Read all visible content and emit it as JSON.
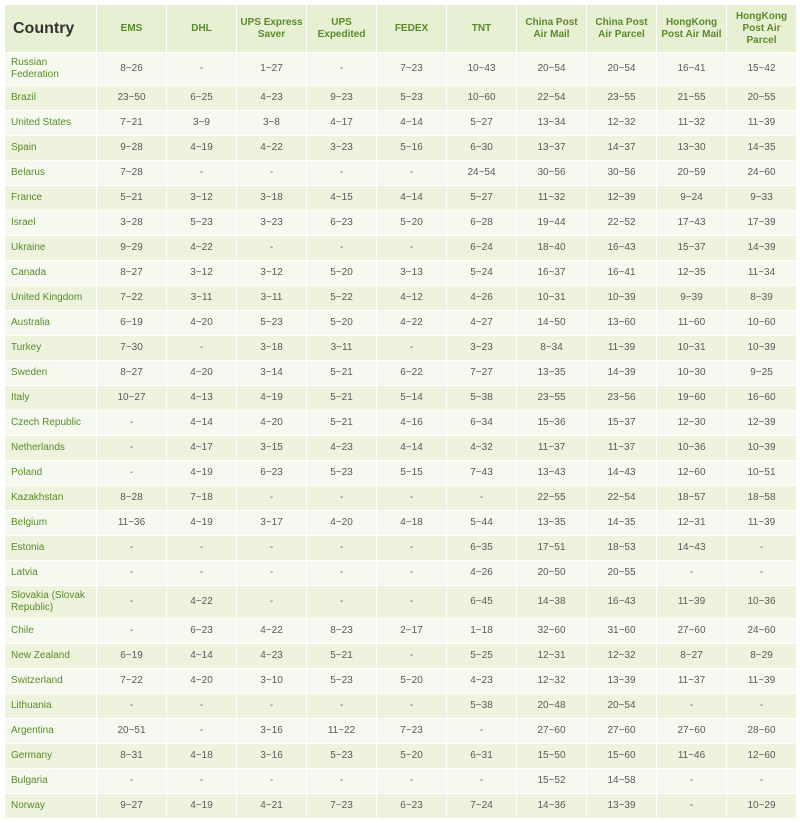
{
  "table": {
    "columns": [
      "Country",
      "EMS",
      "DHL",
      "UPS Express Saver",
      "UPS Expedited",
      "FEDEX",
      "TNT",
      "China Post Air Mail",
      "China Post Air Parcel",
      "HongKong Post Air Mail",
      "HongKong Post Air Parcel"
    ],
    "rows": [
      [
        "Russian Federation",
        "8~26",
        "-",
        "1~27",
        "-",
        "7~23",
        "10~43",
        "20~54",
        "20~54",
        "16~41",
        "15~42"
      ],
      [
        "Brazil",
        "23~50",
        "6~25",
        "4~23",
        "9~23",
        "5~23",
        "10~60",
        "22~54",
        "23~55",
        "21~55",
        "20~55"
      ],
      [
        "United States",
        "7~21",
        "3~9",
        "3~8",
        "4~17",
        "4~14",
        "5~27",
        "13~34",
        "12~32",
        "11~32",
        "11~39"
      ],
      [
        "Spain",
        "9~28",
        "4~19",
        "4~22",
        "3~23",
        "5~16",
        "6~30",
        "13~37",
        "14~37",
        "13~30",
        "14~35"
      ],
      [
        "Belarus",
        "7~28",
        "-",
        "-",
        "-",
        "-",
        "24~54",
        "30~56",
        "30~56",
        "20~59",
        "24~60"
      ],
      [
        "France",
        "5~21",
        "3~12",
        "3~18",
        "4~15",
        "4~14",
        "5~27",
        "11~32",
        "12~39",
        "9~24",
        "9~33"
      ],
      [
        "Israel",
        "3~28",
        "5~23",
        "3~23",
        "6~23",
        "5~20",
        "6~28",
        "19~44",
        "22~52",
        "17~43",
        "17~39"
      ],
      [
        "Ukraine",
        "9~29",
        "4~22",
        "-",
        "-",
        "-",
        "6~24",
        "18~40",
        "16~43",
        "15~37",
        "14~39"
      ],
      [
        "Canada",
        "8~27",
        "3~12",
        "3~12",
        "5~20",
        "3~13",
        "5~24",
        "16~37",
        "16~41",
        "12~35",
        "11~34"
      ],
      [
        "United Kingdom",
        "7~22",
        "3~11",
        "3~11",
        "5~22",
        "4~12",
        "4~26",
        "10~31",
        "10~39",
        "9~39",
        "8~39"
      ],
      [
        "Australia",
        "6~19",
        "4~20",
        "5~23",
        "5~20",
        "4~22",
        "4~27",
        "14~50",
        "13~60",
        "11~60",
        "10~60"
      ],
      [
        "Turkey",
        "7~30",
        "-",
        "3~18",
        "3~11",
        "-",
        "3~23",
        "8~34",
        "11~39",
        "10~31",
        "10~39"
      ],
      [
        "Sweden",
        "8~27",
        "4~20",
        "3~14",
        "5~21",
        "6~22",
        "7~27",
        "13~35",
        "14~39",
        "10~30",
        "9~25"
      ],
      [
        "Italy",
        "10~27",
        "4~13",
        "4~19",
        "5~21",
        "5~14",
        "5~38",
        "23~55",
        "23~56",
        "19~60",
        "16~60"
      ],
      [
        "Czech Republic",
        "-",
        "4~14",
        "4~20",
        "5~21",
        "4~16",
        "6~34",
        "15~36",
        "15~37",
        "12~30",
        "12~39"
      ],
      [
        "Netherlands",
        "-",
        "4~17",
        "3~15",
        "4~23",
        "4~14",
        "4~32",
        "11~37",
        "11~37",
        "10~36",
        "10~39"
      ],
      [
        "Poland",
        "-",
        "4~19",
        "6~23",
        "5~23",
        "5~15",
        "7~43",
        "13~43",
        "14~43",
        "12~60",
        "10~51"
      ],
      [
        "Kazakhstan",
        "8~28",
        "7~18",
        "-",
        "-",
        "-",
        "-",
        "22~55",
        "22~54",
        "18~57",
        "18~58"
      ],
      [
        "Belgium",
        "11~36",
        "4~19",
        "3~17",
        "4~20",
        "4~18",
        "5~44",
        "13~35",
        "14~35",
        "12~31",
        "11~39"
      ],
      [
        "Estonia",
        "-",
        "-",
        "-",
        "-",
        "-",
        "6~35",
        "17~51",
        "18~53",
        "14~43",
        "-"
      ],
      [
        "Latvia",
        "-",
        "-",
        "-",
        "-",
        "-",
        "4~26",
        "20~50",
        "20~55",
        "-",
        "-"
      ],
      [
        "Slovakia (Slovak Republic)",
        "-",
        "4~22",
        "-",
        "-",
        "-",
        "6~45",
        "14~38",
        "16~43",
        "11~39",
        "10~36"
      ],
      [
        "Chile",
        "-",
        "6~23",
        "4~22",
        "8~23",
        "2~17",
        "1~18",
        "32~60",
        "31~60",
        "27~60",
        "24~60"
      ],
      [
        "New Zealand",
        "6~19",
        "4~14",
        "4~23",
        "5~21",
        "-",
        "5~25",
        "12~31",
        "12~32",
        "8~27",
        "8~29"
      ],
      [
        "Switzerland",
        "7~22",
        "4~20",
        "3~10",
        "5~23",
        "5~20",
        "4~23",
        "12~32",
        "13~39",
        "11~37",
        "11~39"
      ],
      [
        "Lithuania",
        "-",
        "-",
        "-",
        "-",
        "-",
        "5~38",
        "20~48",
        "20~54",
        "-",
        "-"
      ],
      [
        "Argentina",
        "20~51",
        "-",
        "3~16",
        "11~22",
        "7~23",
        "-",
        "27~60",
        "27~60",
        "27~60",
        "28~60"
      ],
      [
        "Germany",
        "8~31",
        "4~18",
        "3~16",
        "5~23",
        "5~20",
        "6~31",
        "15~50",
        "15~60",
        "11~46",
        "12~60"
      ],
      [
        "Bulgaria",
        "-",
        "-",
        "-",
        "-",
        "-",
        "-",
        "15~52",
        "14~58",
        "-",
        "-"
      ],
      [
        "Norway",
        "9~27",
        "4~19",
        "4~21",
        "7~23",
        "6~23",
        "7~24",
        "14~36",
        "13~39",
        "-",
        "10~29"
      ]
    ]
  }
}
